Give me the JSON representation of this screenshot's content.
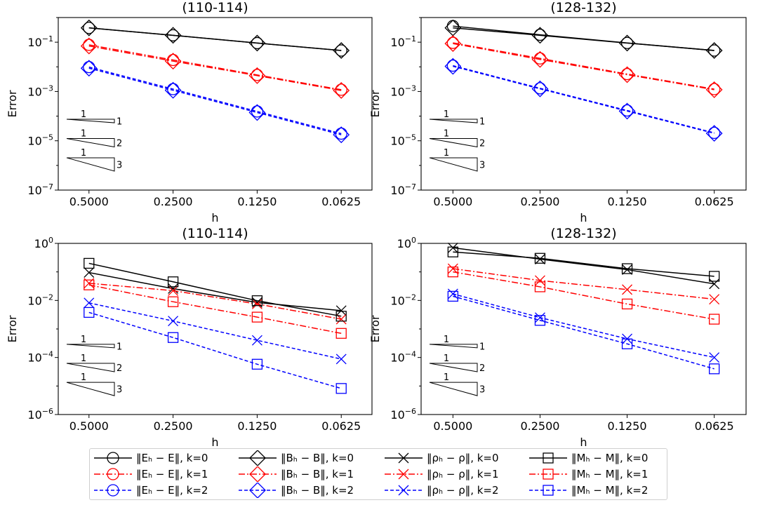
{
  "chart_data": [
    {
      "type": "line",
      "scale": "log-log",
      "title": "(110-114)",
      "xlabel": "h",
      "ylabel": "Error",
      "x": [
        0.5,
        0.25,
        0.125,
        0.0625
      ],
      "x_tick_labels": [
        "0.5000",
        "0.2500",
        "0.1250",
        "0.0625"
      ],
      "ylim": [
        1e-07,
        1
      ],
      "y_ticks": [
        -7,
        -5,
        -3,
        -1
      ],
      "series": [
        {
          "name": "E, k=0",
          "marker": "circle",
          "k": 0,
          "values": [
            0.38,
            0.19,
            0.092,
            0.046
          ]
        },
        {
          "name": "E, k=1",
          "marker": "circle",
          "k": 1,
          "values": [
            0.078,
            0.019,
            0.0047,
            0.00118
          ]
        },
        {
          "name": "E, k=2",
          "marker": "circle",
          "k": 2,
          "values": [
            0.0098,
            0.00125,
            0.000155,
            1.95e-05
          ]
        },
        {
          "name": "B, k=0",
          "marker": "diamond",
          "k": 0,
          "values": [
            0.38,
            0.19,
            0.092,
            0.046
          ]
        },
        {
          "name": "B, k=1",
          "marker": "diamond",
          "k": 1,
          "values": [
            0.07,
            0.017,
            0.0044,
            0.0011
          ]
        },
        {
          "name": "B, k=2",
          "marker": "diamond",
          "k": 2,
          "values": [
            0.0088,
            0.00112,
            0.00014,
            1.75e-05
          ]
        }
      ]
    },
    {
      "type": "line",
      "scale": "log-log",
      "title": "(128-132)",
      "xlabel": "h",
      "ylabel": "Error",
      "x": [
        0.5,
        0.25,
        0.125,
        0.0625
      ],
      "x_tick_labels": [
        "0.5000",
        "0.2500",
        "0.1250",
        "0.0625"
      ],
      "ylim": [
        1e-07,
        1
      ],
      "y_ticks": [
        -7,
        -5,
        -3,
        -1
      ],
      "series": [
        {
          "name": "E, k=0",
          "marker": "circle",
          "k": 0,
          "values": [
            0.45,
            0.2,
            0.093,
            0.046
          ]
        },
        {
          "name": "E, k=1",
          "marker": "circle",
          "k": 1,
          "values": [
            0.094,
            0.022,
            0.0051,
            0.00125
          ]
        },
        {
          "name": "E, k=2",
          "marker": "circle",
          "k": 2,
          "values": [
            0.0112,
            0.00135,
            0.00017,
            2.1e-05
          ]
        },
        {
          "name": "B, k=0",
          "marker": "diamond",
          "k": 0,
          "values": [
            0.38,
            0.19,
            0.092,
            0.046
          ]
        },
        {
          "name": "B, k=1",
          "marker": "diamond",
          "k": 1,
          "values": [
            0.088,
            0.02,
            0.0048,
            0.00118
          ]
        },
        {
          "name": "B, k=2",
          "marker": "diamond",
          "k": 2,
          "values": [
            0.0105,
            0.00128,
            0.00016,
            2e-05
          ]
        }
      ]
    },
    {
      "type": "line",
      "scale": "log-log",
      "title": "(110-114)",
      "xlabel": "h",
      "ylabel": "Error",
      "x": [
        0.5,
        0.25,
        0.125,
        0.0625
      ],
      "x_tick_labels": [
        "0.5000",
        "0.2500",
        "0.1250",
        "0.0625"
      ],
      "ylim": [
        1e-06,
        1
      ],
      "y_ticks": [
        -6,
        -4,
        -2,
        0
      ],
      "series": [
        {
          "name": "rho, k=0",
          "marker": "x",
          "k": 0,
          "values": [
            0.095,
            0.026,
            0.0085,
            0.0044
          ]
        },
        {
          "name": "rho, k=1",
          "marker": "x",
          "k": 1,
          "values": [
            0.04,
            0.022,
            0.0075,
            0.0022
          ]
        },
        {
          "name": "rho, k=2",
          "marker": "x",
          "k": 2,
          "values": [
            0.0082,
            0.0019,
            0.0004,
            8.8e-05
          ]
        },
        {
          "name": "M, k=0",
          "marker": "square",
          "k": 0,
          "values": [
            0.2,
            0.045,
            0.0098,
            0.0028
          ]
        },
        {
          "name": "M, k=1",
          "marker": "square",
          "k": 1,
          "values": [
            0.035,
            0.009,
            0.0026,
            0.0007
          ]
        },
        {
          "name": "M, k=2",
          "marker": "square",
          "k": 2,
          "values": [
            0.0038,
            0.0005,
            5.8e-05,
            8.2e-06
          ]
        }
      ]
    },
    {
      "type": "line",
      "scale": "log-log",
      "title": "(128-132)",
      "xlabel": "h",
      "ylabel": "Error",
      "x": [
        0.5,
        0.25,
        0.125,
        0.0625
      ],
      "x_tick_labels": [
        "0.5000",
        "0.2500",
        "0.1250",
        "0.0625"
      ],
      "ylim": [
        1e-06,
        1
      ],
      "y_ticks": [
        -6,
        -4,
        -2,
        0
      ],
      "series": [
        {
          "name": "rho, k=0",
          "marker": "x",
          "k": 0,
          "values": [
            0.7,
            0.28,
            0.12,
            0.038
          ]
        },
        {
          "name": "rho, k=1",
          "marker": "x",
          "k": 1,
          "values": [
            0.13,
            0.05,
            0.024,
            0.011
          ]
        },
        {
          "name": "rho, k=2",
          "marker": "x",
          "k": 2,
          "values": [
            0.017,
            0.0025,
            0.00045,
            0.0001
          ]
        },
        {
          "name": "M, k=0",
          "marker": "square",
          "k": 0,
          "values": [
            0.5,
            0.3,
            0.13,
            0.07
          ]
        },
        {
          "name": "M, k=1",
          "marker": "square",
          "k": 1,
          "values": [
            0.1,
            0.03,
            0.0075,
            0.0022
          ]
        },
        {
          "name": "M, k=2",
          "marker": "square",
          "k": 2,
          "values": [
            0.014,
            0.002,
            0.0003,
            4e-05
          ]
        }
      ]
    }
  ],
  "slope_labels": {
    "run": "1",
    "rises": [
      "1",
      "2",
      "3"
    ]
  },
  "styles": {
    "k0": {
      "color": "#000000",
      "dash": ""
    },
    "k1": {
      "color": "#ff0000",
      "dash": "9,3,2,3"
    },
    "k2": {
      "color": "#0000ff",
      "dash": "5,3"
    }
  },
  "legend": {
    "columns": [
      {
        "marker": "circle",
        "entries": [
          "‖Eₕ − E‖, k=0",
          "‖Eₕ − E‖, k=1",
          "‖Eₕ − E‖, k=2"
        ]
      },
      {
        "marker": "diamond",
        "entries": [
          "‖Bₕ − B‖, k=0",
          "‖Bₕ − B‖, k=1",
          "‖Bₕ − B‖, k=2"
        ]
      },
      {
        "marker": "x",
        "entries": [
          "‖ρₕ − ρ‖, k=0",
          "‖ρₕ − ρ‖, k=1",
          "‖ρₕ − ρ‖, k=2"
        ]
      },
      {
        "marker": "square",
        "entries": [
          "‖Mₕ − M‖, k=0",
          "‖Mₕ − M‖, k=1",
          "‖Mₕ − M‖, k=2"
        ]
      }
    ]
  }
}
